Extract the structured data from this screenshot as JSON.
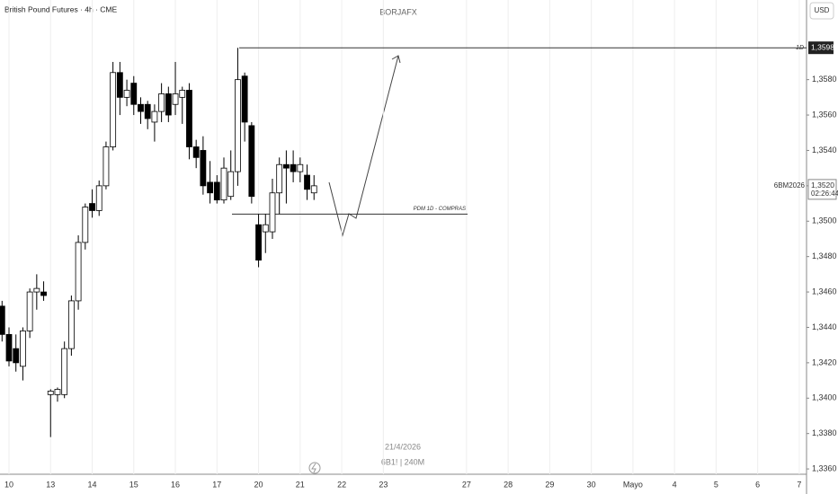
{
  "chart_data": {
    "type": "candlestick",
    "title": "BORJAFX",
    "subtitle": "British Pound Futures · 4h · CME",
    "currency": "USD",
    "footer": [
      "21/4/2026",
      "6B1! | 240M"
    ],
    "categories": [
      null,
      "10",
      null,
      null,
      null,
      null,
      null,
      "13",
      null,
      null,
      null,
      null,
      null,
      "14",
      null,
      null,
      null,
      null,
      null,
      "15",
      null,
      null,
      null,
      null,
      null,
      "16",
      null,
      null,
      null,
      null,
      null,
      "17",
      null,
      null,
      null,
      null,
      null,
      "20",
      null,
      null,
      null,
      null,
      null,
      "21",
      null,
      null,
      null,
      null,
      null,
      "22",
      null,
      null,
      null,
      null,
      null,
      "23",
      null,
      null,
      null,
      null,
      null,
      null,
      null,
      null,
      null,
      null,
      null,
      "27",
      null,
      null,
      null,
      null,
      null,
      "28",
      null,
      null,
      null,
      null,
      null,
      "29",
      null,
      null,
      null,
      null,
      null,
      "30",
      null,
      null,
      null,
      null,
      null,
      "Mayo",
      null,
      null,
      null,
      null,
      null,
      "4",
      null,
      null,
      null,
      null,
      null,
      "5",
      null,
      null,
      null,
      null,
      null,
      "6",
      null,
      null,
      null,
      null,
      null,
      "7"
    ],
    "open": [
      1.3452,
      1.3436,
      1.3428,
      1.3418,
      1.3438,
      1.346,
      1.346,
      1.3402,
      1.3402,
      1.3402,
      1.3428,
      1.3455,
      1.3488,
      1.351,
      1.3506,
      1.352,
      1.3542,
      1.3584,
      1.357,
      1.3578,
      1.3566,
      1.3566,
      1.3556,
      1.3562,
      1.3572,
      1.3566,
      1.357,
      1.3574,
      1.3542,
      1.354,
      1.3522,
      1.3522,
      1.3512,
      1.3514,
      1.3528,
      1.3582,
      1.3554,
      1.3498,
      1.3494,
      1.3494,
      1.3516,
      1.3532,
      1.3532,
      1.3528,
      1.3526,
      1.3516,
      null,
      null,
      null,
      null,
      null,
      null,
      null,
      null,
      null,
      null,
      null,
      null,
      null,
      null,
      null,
      null,
      null,
      null,
      null,
      null,
      null,
      null,
      null,
      null,
      null,
      null,
      null,
      null,
      null,
      null,
      null,
      null,
      null,
      null,
      null,
      null,
      null,
      null,
      null,
      null,
      null,
      null,
      null,
      null,
      null,
      null,
      null,
      null,
      null,
      null,
      null,
      null,
      null,
      null,
      null,
      null,
      null,
      null,
      null,
      null,
      null,
      null,
      null,
      null,
      null,
      null,
      null,
      null,
      null,
      null
    ],
    "high": [
      1.3455,
      1.344,
      1.3436,
      1.344,
      1.3462,
      1.347,
      1.3466,
      1.3405,
      1.3406,
      1.3432,
      1.3458,
      1.3492,
      1.351,
      1.3518,
      1.3523,
      1.3545,
      1.359,
      1.359,
      1.358,
      1.3582,
      1.357,
      1.3568,
      1.3566,
      1.3578,
      1.3576,
      1.359,
      1.3576,
      1.3578,
      1.3546,
      1.3548,
      1.3534,
      1.3526,
      1.3536,
      1.354,
      1.3598,
      1.3584,
      1.3556,
      1.3504,
      1.3504,
      1.3524,
      1.3536,
      1.354,
      1.354,
      1.3536,
      1.3532,
      1.3526,
      null,
      null,
      null,
      null,
      null,
      null,
      null,
      null,
      null,
      null,
      null,
      null,
      null,
      null,
      null,
      null,
      null,
      null,
      null,
      null,
      null,
      null,
      null,
      null,
      null,
      null,
      null,
      null,
      null,
      null,
      null,
      null,
      null,
      null,
      null,
      null,
      null,
      null,
      null,
      null,
      null,
      null,
      null,
      null,
      null,
      null,
      null,
      null,
      null,
      null,
      null,
      null,
      null,
      null,
      null,
      null,
      null,
      null,
      null,
      null,
      null,
      null,
      null,
      null,
      null,
      null,
      null,
      null,
      null,
      null
    ],
    "low": [
      1.3432,
      1.3418,
      1.3415,
      1.341,
      1.3434,
      1.345,
      1.3455,
      1.3378,
      1.3398,
      1.34,
      1.3424,
      1.345,
      1.3484,
      1.3502,
      1.3503,
      1.3518,
      1.354,
      1.356,
      1.3565,
      1.356,
      1.3555,
      1.3552,
      1.3545,
      1.3556,
      1.3556,
      1.356,
      1.3555,
      1.3535,
      1.353,
      1.3515,
      1.351,
      1.351,
      1.351,
      1.3512,
      1.352,
      1.3545,
      1.351,
      1.3474,
      1.3482,
      1.349,
      1.3504,
      1.351,
      1.3522,
      1.3522,
      1.3512,
      1.3512,
      null,
      null,
      null,
      null,
      null,
      null,
      null,
      null,
      null,
      null,
      null,
      null,
      null,
      null,
      null,
      null,
      null,
      null,
      null,
      null,
      null,
      null,
      null,
      null,
      null,
      null,
      null,
      null,
      null,
      null,
      null,
      null,
      null,
      null,
      null,
      null,
      null,
      null,
      null,
      null,
      null,
      null,
      null,
      null,
      null,
      null,
      null,
      null,
      null,
      null,
      null,
      null,
      null,
      null,
      null,
      null,
      null,
      null,
      null,
      null,
      null,
      null,
      null,
      null,
      null,
      null,
      null,
      null,
      null,
      null
    ],
    "close": [
      1.3436,
      1.3421,
      1.342,
      1.3438,
      1.346,
      1.3462,
      1.3458,
      1.3404,
      1.3405,
      1.3428,
      1.3455,
      1.3488,
      1.3508,
      1.3506,
      1.352,
      1.3542,
      1.3584,
      1.357,
      1.3574,
      1.3566,
      1.3562,
      1.3558,
      1.3562,
      1.3572,
      1.356,
      1.3572,
      1.3574,
      1.3542,
      1.3536,
      1.352,
      1.3516,
      1.3512,
      1.353,
      1.3528,
      1.358,
      1.3556,
      1.3514,
      1.3478,
      1.3498,
      1.3516,
      1.3532,
      1.353,
      1.3528,
      1.3532,
      1.3518,
      1.352,
      null,
      null,
      null,
      null,
      null,
      null,
      null,
      null,
      null,
      null,
      null,
      null,
      null,
      null,
      null,
      null,
      null,
      null,
      null,
      null,
      null,
      null,
      null,
      null,
      null,
      null,
      null,
      null,
      null,
      null,
      null,
      null,
      null,
      null,
      null,
      null,
      null,
      null,
      null,
      null,
      null,
      null,
      null,
      null,
      null,
      null,
      null,
      null,
      null,
      null,
      null,
      null,
      null,
      null,
      null,
      null,
      null,
      null,
      null,
      null,
      null,
      null,
      null,
      null,
      null,
      null,
      null,
      null,
      null,
      null
    ],
    "up_color": "#ffffff",
    "down_color": "#000000",
    "ylim": [
      1.3357,
      1.3625
    ],
    "yticks": [
      {
        "value": 1.336,
        "label": "1,3360"
      },
      {
        "value": 1.338,
        "label": "1,3380"
      },
      {
        "value": 1.34,
        "label": "1,3400"
      },
      {
        "value": 1.342,
        "label": "1,3420"
      },
      {
        "value": 1.344,
        "label": "1,3440"
      },
      {
        "value": 1.346,
        "label": "1,3460"
      },
      {
        "value": 1.348,
        "label": "1,3480"
      },
      {
        "value": 1.35,
        "label": "1,3500"
      },
      {
        "value": 1.352,
        "label": "1,3520"
      },
      {
        "value": 1.354,
        "label": "1,3540"
      },
      {
        "value": 1.356,
        "label": "1,3560"
      },
      {
        "value": 1.358,
        "label": "1,3580"
      }
    ],
    "levels": [
      {
        "label": "1D",
        "value": 1.3598,
        "value_label": "1,3598"
      },
      {
        "label": "PDM 1D - COMPRAS",
        "value": 1.3504
      }
    ],
    "last_price": {
      "symbol": "6BM2026",
      "value": 1.352,
      "value_label": "1,3520",
      "countdown": "02:26:44"
    }
  }
}
